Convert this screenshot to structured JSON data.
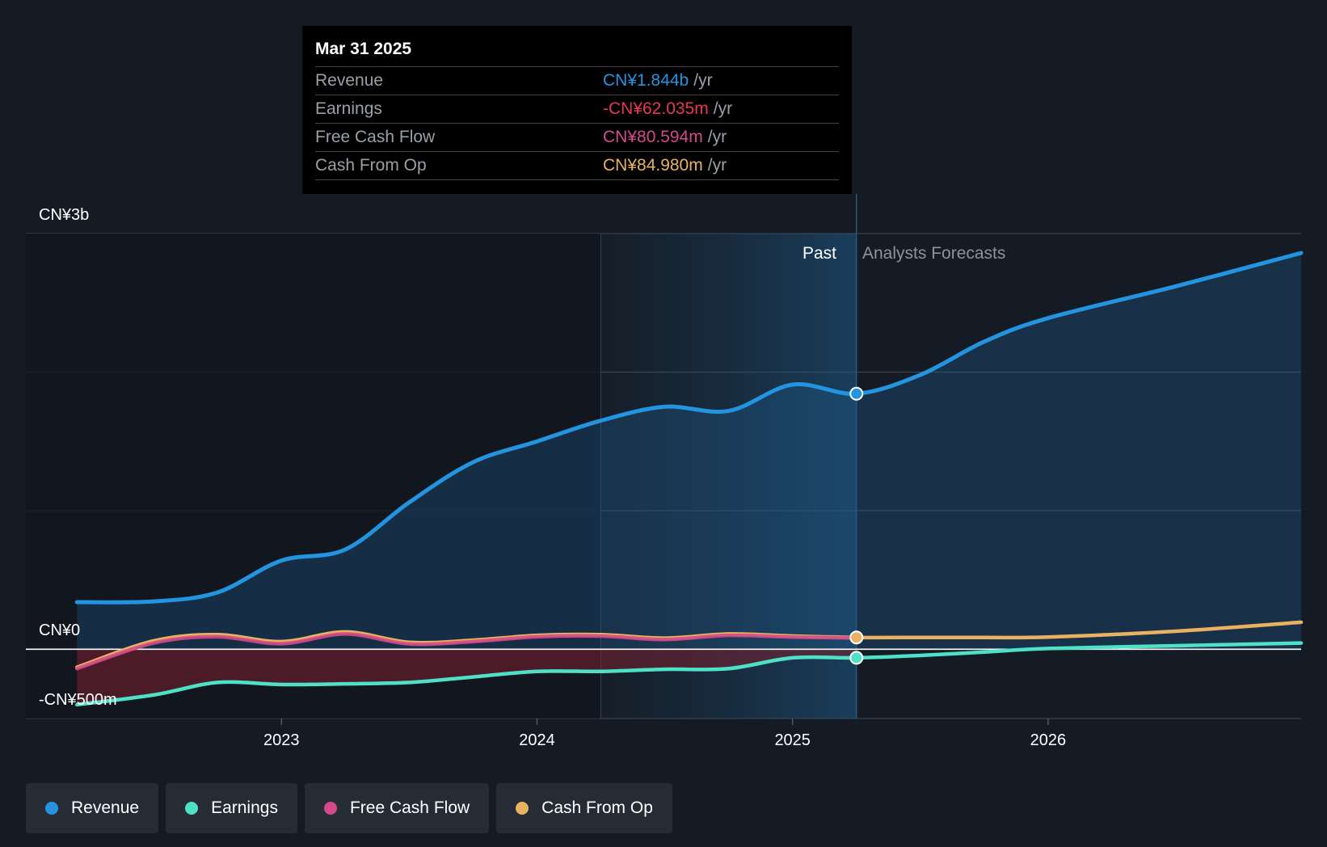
{
  "tooltip": {
    "date": "Mar 31 2025",
    "rows": [
      {
        "label": "Revenue",
        "value": "CN¥1.844b",
        "unit": "/yr",
        "color": "#2394e0"
      },
      {
        "label": "Earnings",
        "value": "-CN¥62.035m",
        "unit": "/yr",
        "color": "#e8384f"
      },
      {
        "label": "Free Cash Flow",
        "value": "CN¥80.594m",
        "unit": "/yr",
        "color": "#d44a8a"
      },
      {
        "label": "Cash From Op",
        "value": "CN¥84.980m",
        "unit": "/yr",
        "color": "#e8b261"
      }
    ]
  },
  "legend": [
    {
      "label": "Revenue",
      "color": "#2394e0"
    },
    {
      "label": "Earnings",
      "color": "#4fe0c8"
    },
    {
      "label": "Free Cash Flow",
      "color": "#d44a8a"
    },
    {
      "label": "Cash From Op",
      "color": "#e8b261"
    }
  ],
  "chart_data": {
    "type": "line",
    "y_label_top": "CN¥3b",
    "y_label_zero": "CN¥0",
    "y_label_bottom": "-CN¥500m",
    "ylim": [
      -500,
      3000
    ],
    "x_range": [
      2022.0,
      2026.99
    ],
    "x_ticks": [
      {
        "value": 2023,
        "label": "2023"
      },
      {
        "value": 2024,
        "label": "2024"
      },
      {
        "value": 2025,
        "label": "2025"
      },
      {
        "value": 2026,
        "label": "2026"
      }
    ],
    "highlight_start": 2024.25,
    "past_end": 2025.25,
    "past_label": "Past",
    "forecast_label": "Analysts Forecasts",
    "series": [
      {
        "name": "Revenue",
        "color": "#2394e0",
        "points": [
          [
            2022.2,
            340
          ],
          [
            2022.5,
            345
          ],
          [
            2022.75,
            410
          ],
          [
            2023.0,
            640
          ],
          [
            2023.25,
            720
          ],
          [
            2023.5,
            1060
          ],
          [
            2023.75,
            1350
          ],
          [
            2024.0,
            1500
          ],
          [
            2024.25,
            1650
          ],
          [
            2024.5,
            1750
          ],
          [
            2024.75,
            1720
          ],
          [
            2025.0,
            1910
          ],
          [
            2025.25,
            1844
          ],
          [
            2025.5,
            1980
          ],
          [
            2025.75,
            2220
          ],
          [
            2026.0,
            2390
          ],
          [
            2026.5,
            2620
          ],
          [
            2026.99,
            2860
          ]
        ]
      },
      {
        "name": "Cash From Op",
        "color": "#e8b261",
        "points": [
          [
            2022.2,
            -130
          ],
          [
            2022.5,
            60
          ],
          [
            2022.75,
            105
          ],
          [
            2023.0,
            55
          ],
          [
            2023.25,
            125
          ],
          [
            2023.5,
            50
          ],
          [
            2023.75,
            65
          ],
          [
            2024.0,
            100
          ],
          [
            2024.25,
            105
          ],
          [
            2024.5,
            80
          ],
          [
            2024.75,
            110
          ],
          [
            2025.0,
            95
          ],
          [
            2025.25,
            85
          ],
          [
            2025.5,
            85
          ],
          [
            2025.75,
            85
          ],
          [
            2026.0,
            88
          ],
          [
            2026.5,
            130
          ],
          [
            2026.99,
            195
          ]
        ]
      },
      {
        "name": "Free Cash Flow",
        "color": "#d44a8a",
        "points": [
          [
            2022.2,
            -140
          ],
          [
            2022.5,
            45
          ],
          [
            2022.75,
            90
          ],
          [
            2023.0,
            40
          ],
          [
            2023.25,
            110
          ],
          [
            2023.5,
            38
          ],
          [
            2023.75,
            55
          ],
          [
            2024.0,
            90
          ],
          [
            2024.25,
            95
          ],
          [
            2024.5,
            70
          ],
          [
            2024.75,
            100
          ],
          [
            2025.0,
            88
          ],
          [
            2025.25,
            81
          ]
        ]
      },
      {
        "name": "Earnings",
        "color": "#4fe0c8",
        "points": [
          [
            2022.2,
            -400
          ],
          [
            2022.5,
            -330
          ],
          [
            2022.75,
            -240
          ],
          [
            2023.0,
            -255
          ],
          [
            2023.25,
            -250
          ],
          [
            2023.5,
            -240
          ],
          [
            2023.75,
            -200
          ],
          [
            2024.0,
            -160
          ],
          [
            2024.25,
            -160
          ],
          [
            2024.5,
            -145
          ],
          [
            2024.75,
            -140
          ],
          [
            2025.0,
            -62
          ],
          [
            2025.25,
            -62
          ],
          [
            2025.5,
            -45
          ],
          [
            2025.75,
            -20
          ],
          [
            2026.0,
            5
          ],
          [
            2026.5,
            25
          ],
          [
            2026.99,
            45
          ]
        ]
      }
    ]
  }
}
